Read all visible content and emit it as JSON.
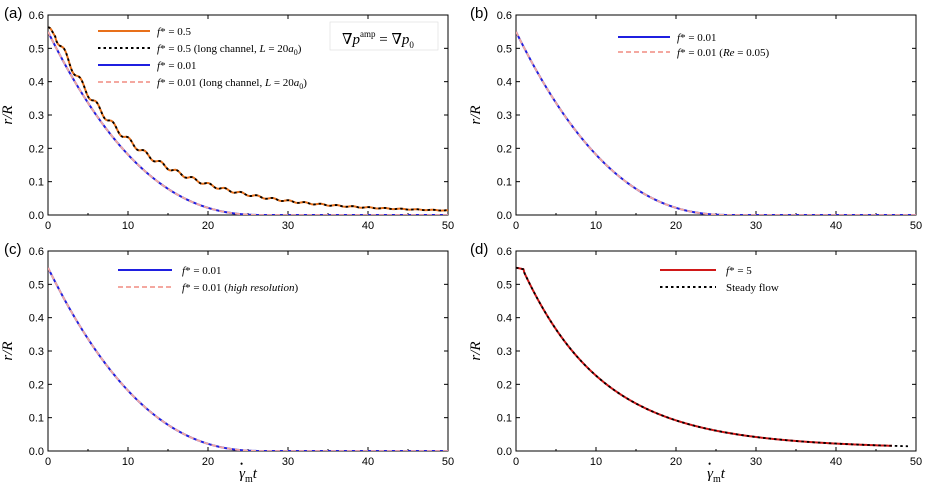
{
  "figure": {
    "xlabel": "γ̇mt",
    "xlabel_main": "γ",
    "xlabel_dot": "•",
    "xlabel_sub": "m",
    "xlabel_tail": "t",
    "ylabel": "r/R"
  },
  "chart_data": [
    {
      "type": "line",
      "panel_label": "(a)",
      "xlim": [
        0,
        50
      ],
      "ylim": [
        0,
        0.6
      ],
      "xticks": [
        "0",
        "10",
        "20",
        "30",
        "40",
        "50"
      ],
      "yticks": [
        "0.0",
        "0.1",
        "0.2",
        "0.3",
        "0.4",
        "0.5",
        "0.6"
      ],
      "annotation": "∇p^amp = ∇p_0",
      "annotation_parts": {
        "a": "∇",
        "b": "p",
        "c": "amp",
        "d": " = ∇",
        "e": "p",
        "f": "0"
      },
      "legend": [
        "f* = 0.5",
        "f* = 0.5 (long channel, L = 20a0)",
        "f* = 0.01",
        "f* = 0.01 (long channel, L = 20a0)"
      ],
      "legend_parts": [
        {
          "f": "f",
          "rest": "* = 0.5"
        },
        {
          "f": "f",
          "rest": "* = 0.5 (long channel, ",
          "L": "L",
          "eq": " = 20",
          "a": "a",
          "sub": "0",
          "close": ")"
        },
        {
          "f": "f",
          "rest": "* = 0.01"
        },
        {
          "f": "f",
          "rest": "* = 0.01 (long channel, ",
          "L": "L",
          "eq": " = 20",
          "a": "a",
          "sub": "0",
          "close": ")"
        }
      ],
      "series": [
        {
          "name": "f* = 0.5",
          "color": "#E8701A",
          "style": "solid",
          "model": "slow",
          "osc": 0.0095,
          "period": 2.0
        },
        {
          "name": "f* = 0.5 (long channel, L = 20a0)",
          "color": "#000000",
          "style": "dotted",
          "model": "slow",
          "osc": 0.0095,
          "period": 2.0
        },
        {
          "name": "f* = 0.01",
          "color": "#1F1FE0",
          "style": "solid",
          "model": "fast"
        },
        {
          "name": "f* = 0.01 (long channel, L = 20a0)",
          "color": "#F4A8A0",
          "style": "dashed",
          "model": "fast"
        }
      ]
    },
    {
      "type": "line",
      "panel_label": "(b)",
      "xlim": [
        0,
        50
      ],
      "ylim": [
        0,
        0.6
      ],
      "xticks": [
        "0",
        "10",
        "20",
        "30",
        "40",
        "50"
      ],
      "yticks": [
        "0.0",
        "0.1",
        "0.2",
        "0.3",
        "0.4",
        "0.5",
        "0.6"
      ],
      "legend": [
        "f* = 0.01",
        "f* = 0.01 (Re = 0.05)"
      ],
      "legend_parts": [
        {
          "f": "f",
          "rest": "* = 0.01"
        },
        {
          "f": "f",
          "rest": "* = 0.01 (",
          "Re": "Re",
          "tail": " = 0.05)"
        }
      ],
      "series": [
        {
          "name": "f* = 0.01",
          "color": "#1F1FE0",
          "style": "solid",
          "model": "fast"
        },
        {
          "name": "f* = 0.01 (Re = 0.05)",
          "color": "#F4A8A0",
          "style": "dashed",
          "model": "fast"
        }
      ]
    },
    {
      "type": "line",
      "panel_label": "(c)",
      "xlim": [
        0,
        50
      ],
      "ylim": [
        0,
        0.6
      ],
      "xticks": [
        "0",
        "10",
        "20",
        "30",
        "40",
        "50"
      ],
      "yticks": [
        "0.0",
        "0.1",
        "0.2",
        "0.3",
        "0.4",
        "0.5",
        "0.6"
      ],
      "legend": [
        "f* = 0.01",
        "f* = 0.01 (high resolution)"
      ],
      "legend_parts": [
        {
          "f": "f",
          "rest": "* = 0.01"
        },
        {
          "f": "f",
          "rest": "* = 0.01 (",
          "hr": "high resolution",
          "tail": ")"
        }
      ],
      "series": [
        {
          "name": "f* = 0.01",
          "color": "#1F1FE0",
          "style": "solid",
          "model": "fast"
        },
        {
          "name": "f* = 0.01 (high resolution)",
          "color": "#F4A8A0",
          "style": "dashed",
          "model": "fast"
        }
      ]
    },
    {
      "type": "line",
      "panel_label": "(d)",
      "xlim": [
        0,
        50
      ],
      "ylim": [
        0,
        0.6
      ],
      "xticks": [
        "0",
        "10",
        "20",
        "30",
        "40",
        "50"
      ],
      "yticks": [
        "0.0",
        "0.1",
        "0.2",
        "0.3",
        "0.4",
        "0.5",
        "0.6"
      ],
      "legend": [
        "f* = 5",
        "Steady flow"
      ],
      "legend_parts": [
        {
          "f": "f",
          "rest": "* = 5"
        },
        {
          "plain": "Steady flow"
        }
      ],
      "series": [
        {
          "name": "f* = 5",
          "color": "#D01818",
          "style": "solid",
          "model": "slow",
          "xmax": 47
        },
        {
          "name": "Steady flow",
          "color": "#000000",
          "style": "dotted",
          "model": "slow",
          "xmax": 49
        }
      ]
    }
  ]
}
